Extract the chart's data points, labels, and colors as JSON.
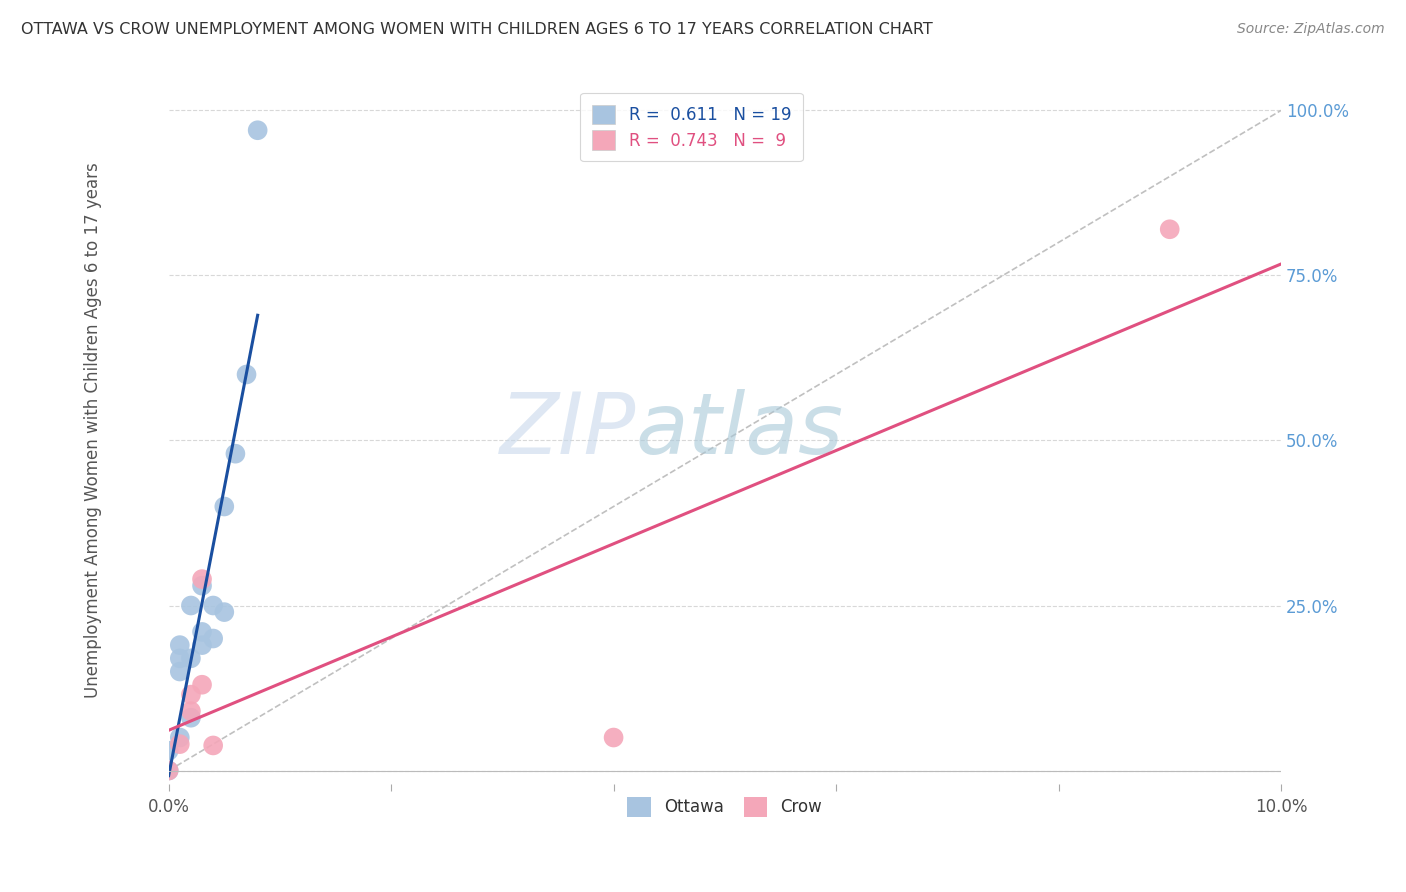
{
  "title": "OTTAWA VS CROW UNEMPLOYMENT AMONG WOMEN WITH CHILDREN AGES 6 TO 17 YEARS CORRELATION CHART",
  "source": "Source: ZipAtlas.com",
  "ylabel": "Unemployment Among Women with Children Ages 6 to 17 years",
  "xlim": [
    0.0,
    0.1
  ],
  "ylim": [
    -0.02,
    1.05
  ],
  "xticks": [
    0.0,
    0.02,
    0.04,
    0.06,
    0.08,
    0.1
  ],
  "xticklabels": [
    "0.0%",
    "",
    "",
    "",
    "",
    "10.0%"
  ],
  "yticks_right": [
    0.0,
    0.25,
    0.5,
    0.75,
    1.0
  ],
  "yticklabels_right": [
    "",
    "25.0%",
    "50.0%",
    "75.0%",
    "100.0%"
  ],
  "ottawa_x": [
    0.0,
    0.0,
    0.001,
    0.001,
    0.001,
    0.001,
    0.002,
    0.002,
    0.002,
    0.003,
    0.003,
    0.003,
    0.004,
    0.004,
    0.005,
    0.005,
    0.006,
    0.007,
    0.008
  ],
  "ottawa_y": [
    0.0,
    0.03,
    0.05,
    0.15,
    0.17,
    0.19,
    0.08,
    0.17,
    0.25,
    0.19,
    0.21,
    0.28,
    0.2,
    0.25,
    0.24,
    0.4,
    0.48,
    0.6,
    0.97
  ],
  "crow_x": [
    0.0,
    0.001,
    0.002,
    0.002,
    0.003,
    0.003,
    0.004,
    0.04,
    0.09
  ],
  "crow_y": [
    0.0,
    0.04,
    0.09,
    0.115,
    0.13,
    0.29,
    0.038,
    0.05,
    0.82
  ],
  "ottawa_color": "#a8c4e0",
  "crow_color": "#f4a7b9",
  "ottawa_line_color": "#1a4fa0",
  "crow_line_color": "#e05080",
  "ref_line_color": "#c0c0c0",
  "R_ottawa": 0.611,
  "N_ottawa": 19,
  "R_crow": 0.743,
  "N_crow": 9,
  "marker_size": 200,
  "watermark_zip": "ZIP",
  "watermark_atlas": "atlas",
  "watermark_color_zip": "#c8d8eb",
  "watermark_color_atlas": "#a8c8d8",
  "watermark_fontsize": 62,
  "background_color": "#ffffff",
  "grid_color": "#d8d8d8",
  "tick_color_right": "#5b9bd5",
  "tick_color_x": "#555555"
}
